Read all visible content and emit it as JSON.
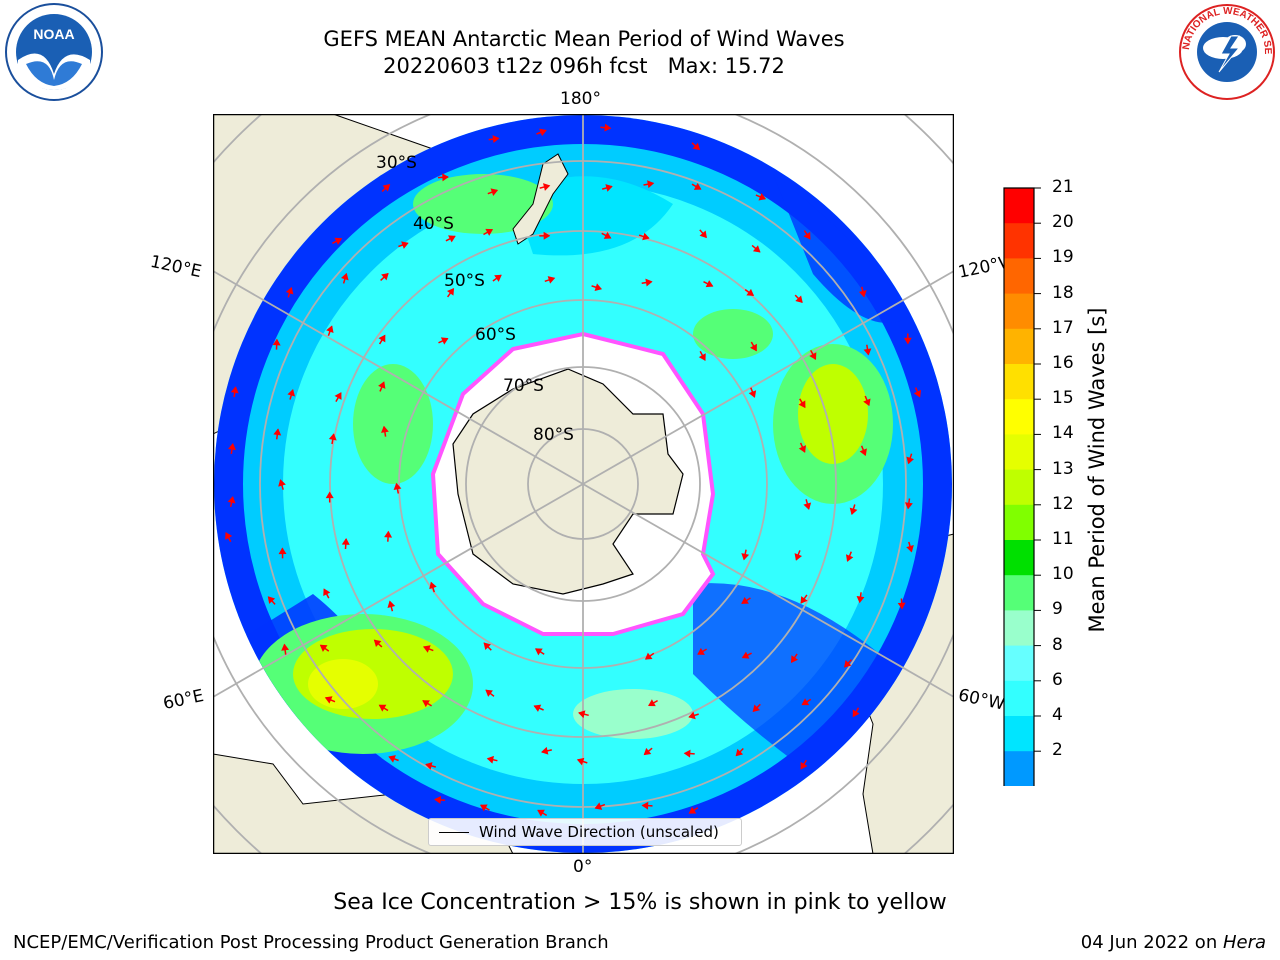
{
  "title": {
    "line1": "GEFS MEAN Antarctic Mean Period of Wind Waves",
    "line2": "20220603 t12z 096h fcst   Max: 15.72"
  },
  "map": {
    "projection": "South Polar Stereographic",
    "longitude_labels": {
      "top": "180°",
      "bottom": "0°",
      "left_upper": "120°E",
      "left_lower": "60°E",
      "right_upper": "120°W",
      "right_lower": "60°W"
    },
    "latitude_labels": [
      "30°S",
      "40°S",
      "50°S",
      "60°S",
      "70°S",
      "80°S"
    ],
    "legend": {
      "label": "Wind Wave Direction (unscaled)"
    },
    "colors": {
      "land": "#eeecd9",
      "ice_edge": "#ff55ff",
      "arrow": "#ff0000"
    }
  },
  "colorbar": {
    "label": "Mean Period of Wind Waves [s]",
    "ticks": [
      "21",
      "20",
      "19",
      "18",
      "17",
      "16",
      "15",
      "14",
      "13",
      "12",
      "11",
      "10",
      "9",
      "8",
      "6",
      "4",
      "2"
    ],
    "colors": [
      "#ff0000",
      "#ff3300",
      "#ff6600",
      "#ff8c00",
      "#ffb300",
      "#ffe000",
      "#ffff00",
      "#e5ff00",
      "#bfff00",
      "#80ff00",
      "#00e000",
      "#55ff77",
      "#99ffcc",
      "#66ffff",
      "#33ffff",
      "#00e5ff",
      "#0099ff",
      "#0033ff"
    ],
    "under_color": "#0000ff"
  },
  "footnote": "Sea Ice Concentration > 15% is shown in pink to yellow",
  "credit": "NCEP/EMC/Verification Post Processing Product Generation Branch",
  "date": {
    "text": "04 Jun 2022 on ",
    "machine": "Hera"
  },
  "logos": {
    "left": "NOAA",
    "right_text": "NATIONAL WEATHER SERVICE"
  }
}
